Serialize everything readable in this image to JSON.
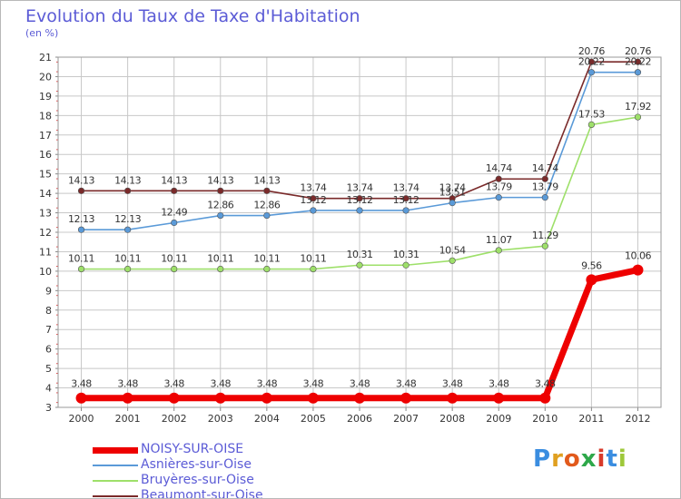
{
  "chart_data": {
    "type": "line",
    "title": "Evolution du Taux de Taxe d'Habitation",
    "unit_label": "(en %)",
    "x": [
      "2000",
      "2001",
      "2002",
      "2003",
      "2004",
      "2005",
      "2006",
      "2007",
      "2008",
      "2009",
      "2010",
      "2011",
      "2012"
    ],
    "ylim": [
      3,
      21
    ],
    "y_ticks": [
      3,
      4,
      5,
      6,
      7,
      8,
      9,
      10,
      11,
      12,
      13,
      14,
      15,
      16,
      17,
      18,
      19,
      20,
      21
    ],
    "grid": true,
    "legend_position": "bottom-left",
    "series": [
      {
        "name": "NOISY-SUR-OISE",
        "color": "#ee0000",
        "values": [
          3.48,
          3.48,
          3.48,
          3.48,
          3.48,
          3.48,
          3.48,
          3.48,
          3.48,
          3.48,
          3.48,
          9.56,
          10.06
        ],
        "labels": [
          "3.48",
          "3.48",
          "3.48",
          "3.48",
          "3.48",
          "3.48",
          "3.48",
          "3.48",
          "3.48",
          "3.48",
          "3.48",
          "9.56",
          "10.06"
        ]
      },
      {
        "name": "Asnières-sur-Oise",
        "color": "#5a9ad8",
        "values": [
          12.13,
          12.13,
          12.49,
          12.86,
          12.86,
          13.12,
          13.12,
          13.12,
          13.51,
          13.79,
          13.79,
          20.22,
          20.22
        ],
        "labels": [
          "12.13",
          "12.13",
          "12.49",
          "12.86",
          "12.86",
          "13.12",
          "13.12",
          "13.12",
          "13.51",
          "13.79",
          "13.79",
          "20.22",
          "20.22"
        ]
      },
      {
        "name": "Bruyères-sur-Oise",
        "color": "#9ee06a",
        "values": [
          10.11,
          10.11,
          10.11,
          10.11,
          10.11,
          10.11,
          10.31,
          10.31,
          10.54,
          11.07,
          11.29,
          17.53,
          17.92
        ],
        "labels": [
          "10.11",
          "10.11",
          "10.11",
          "10.11",
          "10.11",
          "10.11",
          "10.31",
          "10.31",
          "10.54",
          "11.07",
          "11.29",
          "17.53",
          "17.92"
        ]
      },
      {
        "name": "Beaumont-sur-Oise",
        "color": "#7a2a2a",
        "values": [
          14.13,
          14.13,
          14.13,
          14.13,
          14.13,
          13.74,
          13.74,
          13.74,
          13.74,
          14.74,
          14.74,
          20.76,
          20.76
        ],
        "labels": [
          "14.13",
          "14.13",
          "14.13",
          "14.13",
          "14.13",
          "13.74",
          "13.74",
          "13.74",
          "13.74",
          "14.74",
          "14.74",
          "20.76",
          "20.76"
        ]
      }
    ]
  },
  "brand": {
    "letters": [
      "P",
      "r",
      "o",
      "x",
      "i",
      "t",
      "i"
    ],
    "colors": [
      "#3a8de0",
      "#e0a020",
      "#e25a1c",
      "#2ea84a",
      "#d83a2a",
      "#3a8de0",
      "#9ec83a"
    ]
  }
}
